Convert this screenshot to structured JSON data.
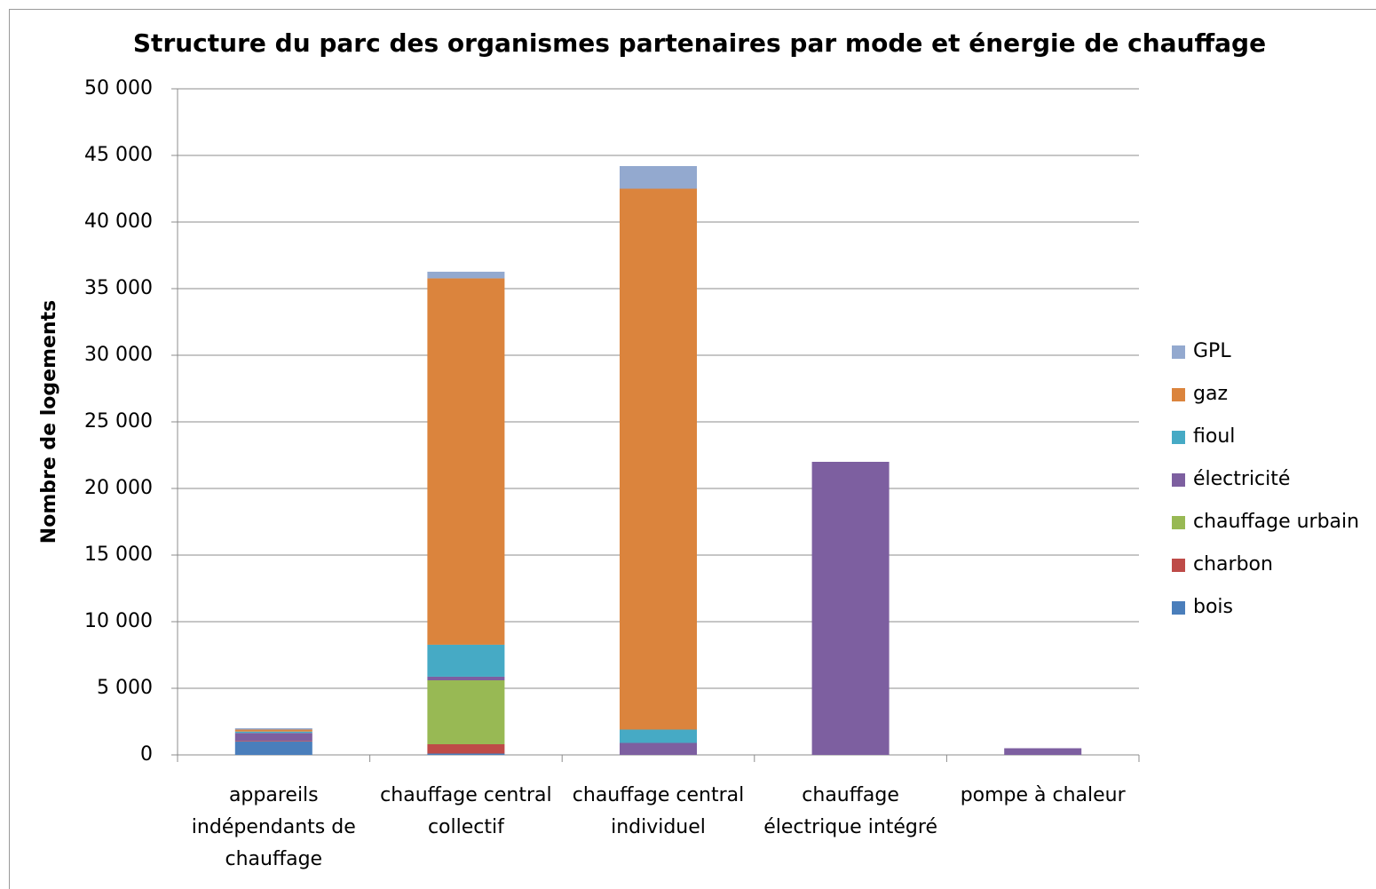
{
  "chart_data": {
    "type": "stacked_bar",
    "title": "Structure du parc des organismes partenaires par mode et énergie de chauffage",
    "y_label": "Nombre de logements",
    "categories": [
      "appareils indépendants de chauffage",
      "chauffage central collectif",
      "chauffage central individuel",
      "chauffage électrique intégré",
      "pompe à chaleur"
    ],
    "series": [
      {
        "name": "bois",
        "color": "#4a7ebb",
        "values": [
          1000,
          100,
          0,
          0,
          0
        ]
      },
      {
        "name": "charbon",
        "color": "#be4b48",
        "values": [
          50,
          700,
          0,
          0,
          0
        ]
      },
      {
        "name": "chauffage urbain",
        "color": "#98b954",
        "values": [
          0,
          4800,
          0,
          0,
          0
        ]
      },
      {
        "name": "électricité",
        "color": "#7d5fa0",
        "values": [
          600,
          270,
          900,
          22000,
          500
        ]
      },
      {
        "name": "fioul",
        "color": "#46aac5",
        "values": [
          100,
          2400,
          1000,
          0,
          0
        ]
      },
      {
        "name": "gaz",
        "color": "#db843d",
        "values": [
          150,
          27500,
          40600,
          0,
          0
        ]
      },
      {
        "name": "GPL",
        "color": "#93a9cf",
        "values": [
          100,
          500,
          1700,
          0,
          0
        ]
      }
    ],
    "ylim": [
      0,
      50000
    ],
    "yticks": [
      0,
      {
        "value": 5000,
        "label": "5 000"
      },
      {
        "value": 10000,
        "label": "10 000"
      },
      {
        "value": 15000,
        "label": "15 000"
      },
      {
        "value": 20000,
        "label": "20 000"
      },
      {
        "value": 25000,
        "label": "25 000"
      },
      {
        "value": 30000,
        "label": "30 000"
      },
      {
        "value": 35000,
        "label": "35 000"
      },
      {
        "value": 40000,
        "label": "40 000"
      },
      {
        "value": 45000,
        "label": "45 000"
      },
      {
        "value": 50000,
        "label": "50 000"
      }
    ],
    "grid": true,
    "legend": "right"
  }
}
